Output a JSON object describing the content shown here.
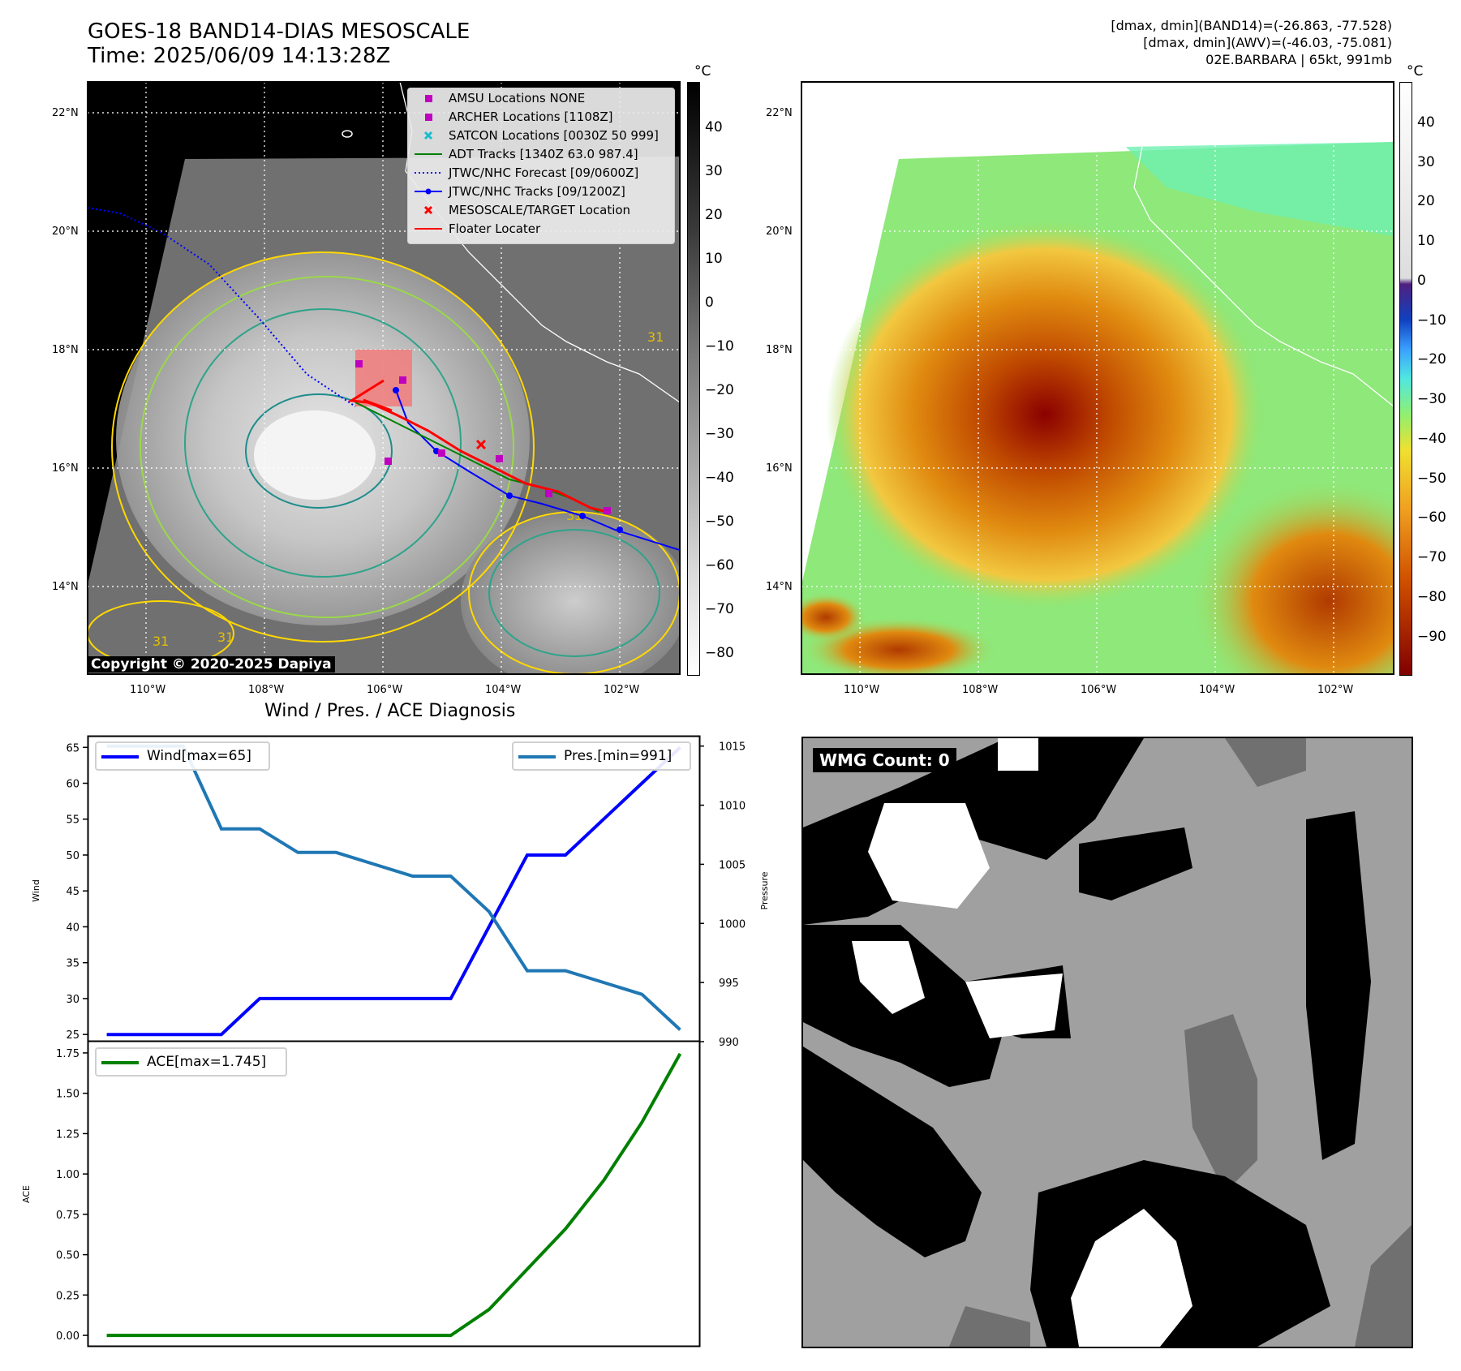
{
  "header": {
    "title": "GOES-18 BAND14-DIAS MESOSCALE",
    "time": "Time: 2025/06/09 14:13:28Z",
    "info_line1": "[dmax, dmin](BAND14)=(-26.863, -77.528)",
    "info_line2": "[dmax, dmin](AWV)=(-46.03, -75.081)",
    "info_line3": "02E.BARBARA | 65kt, 991mb"
  },
  "map": {
    "lat_labels": [
      "22°N",
      "20°N",
      "18°N",
      "16°N",
      "14°N"
    ],
    "lon_labels": [
      "110°W",
      "108°W",
      "106°W",
      "104°W",
      "102°W"
    ],
    "copyright": "Copyright © 2020-2025 Dapiya",
    "contour_label": "31",
    "legend": [
      {
        "label": "AMSU Locations NONE",
        "symbol": "square",
        "color": "#bf00bf"
      },
      {
        "label": "ARCHER Locations [1108Z]",
        "symbol": "square",
        "color": "#bf00bf"
      },
      {
        "label": "SATCON Locations [0030Z 50 999]",
        "symbol": "x",
        "color": "#17becf"
      },
      {
        "label": "ADT Tracks [1340Z 63.0 987.4]",
        "symbol": "line",
        "color": "#008000"
      },
      {
        "label": "JTWC/NHC Forecast [09/0600Z]",
        "symbol": "dotted",
        "color": "#0000ff"
      },
      {
        "label": "JTWC/NHC Tracks [09/1200Z]",
        "symbol": "line-dot",
        "color": "#0000ff"
      },
      {
        "label": "MESOSCALE/TARGET Location",
        "symbol": "x",
        "color": "#ff0000"
      },
      {
        "label": "Floater Locater",
        "symbol": "line",
        "color": "#ff0000"
      }
    ]
  },
  "colorbar_gray": {
    "unit": "°C",
    "ticks": [
      "40",
      "30",
      "20",
      "10",
      "0",
      "−10",
      "−20",
      "−30",
      "−40",
      "−50",
      "−60",
      "−70",
      "−80"
    ]
  },
  "colorbar_color": {
    "unit": "°C",
    "ticks": [
      "40",
      "30",
      "20",
      "10",
      "0",
      "−10",
      "−20",
      "−30",
      "−40",
      "−50",
      "−60",
      "−70",
      "−80",
      "−90"
    ]
  },
  "colors": {
    "wind": "#0000ff",
    "pressure": "#1f77b4",
    "ace": "#008000",
    "legend_square": "#bf00bf",
    "satcon": "#17becf",
    "floater": "#ff0000"
  },
  "wmg": {
    "label": "WMG Count: 0"
  },
  "chart_data": [
    {
      "type": "line",
      "title": "Wind / Pres. / ACE Diagnosis",
      "ylabel": "Wind",
      "ylabel_right": "Pressure",
      "ylim": [
        24,
        66.5
      ],
      "ylim_right": [
        990,
        1015.8
      ],
      "yticks": [
        25,
        30,
        35,
        40,
        45,
        50,
        55,
        60,
        65
      ],
      "yticks_right": [
        990,
        995,
        1000,
        1005,
        1010,
        1015
      ],
      "x": [
        0,
        1,
        2,
        3,
        4,
        5,
        6,
        7,
        8,
        9,
        10,
        11,
        12,
        13,
        14,
        15
      ],
      "series": [
        {
          "name": "Wind[max=65]",
          "axis": "left",
          "color": "#0000ff",
          "values": [
            25,
            25,
            25,
            25,
            30,
            30,
            30,
            30,
            30,
            30,
            40,
            50,
            50,
            55,
            60,
            65
          ]
        },
        {
          "name": "Pres.[min=991]",
          "axis": "right",
          "color": "#1f77b4",
          "values": [
            1015,
            1015,
            1015,
            1008,
            1008,
            1006,
            1006,
            1005,
            1004,
            1004,
            1001,
            996,
            996,
            995,
            994,
            991
          ]
        }
      ]
    },
    {
      "type": "line",
      "ylabel": "ACE",
      "ylim": [
        -0.07,
        1.82
      ],
      "yticks": [
        "0.00",
        "0.25",
        "0.50",
        "0.75",
        "1.00",
        "1.25",
        "1.50",
        "1.75"
      ],
      "x": [
        0,
        1,
        2,
        3,
        4,
        5,
        6,
        7,
        8,
        9,
        10,
        11,
        12,
        13,
        14,
        15
      ],
      "series": [
        {
          "name": "ACE[max=1.745]",
          "color": "#008000",
          "values": [
            0,
            0,
            0,
            0,
            0,
            0,
            0,
            0,
            0,
            0,
            0.16,
            0.41,
            0.66,
            0.96,
            1.32,
            1.745
          ]
        }
      ]
    }
  ]
}
